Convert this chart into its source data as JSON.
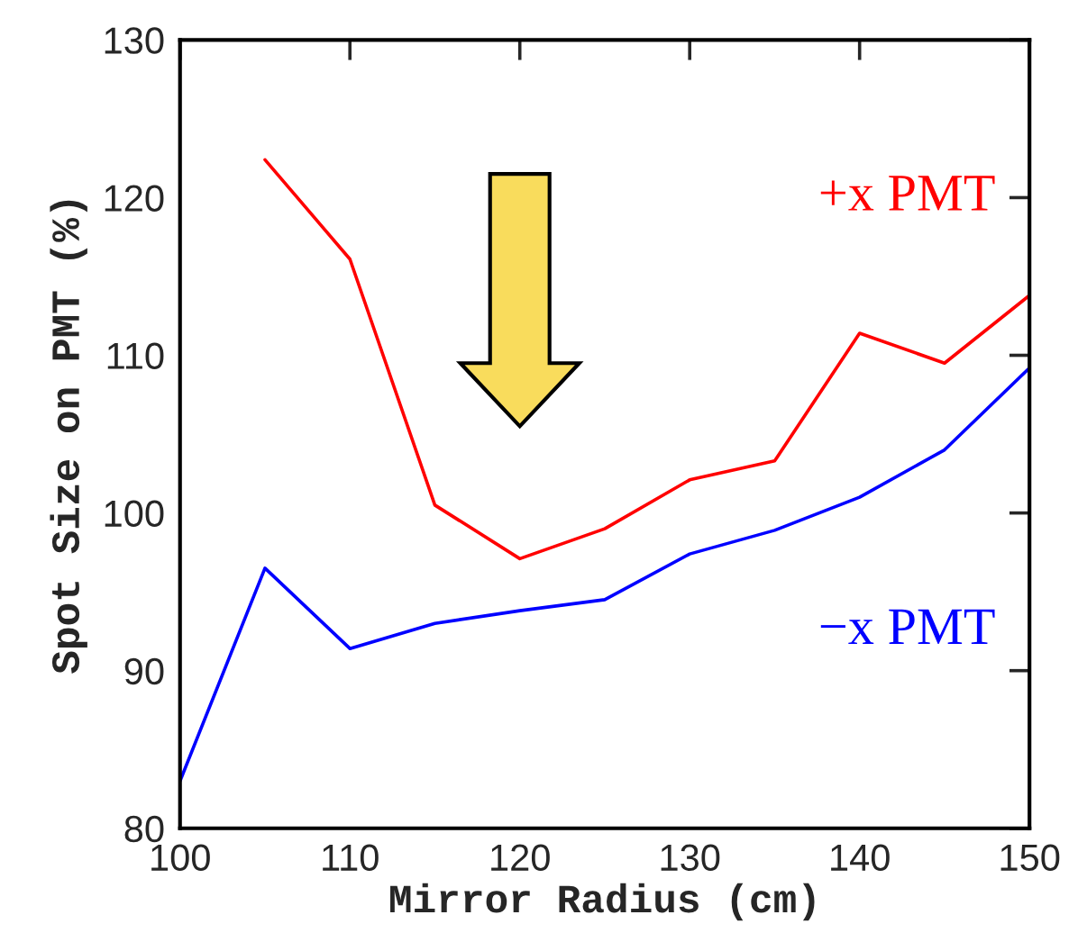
{
  "chart_data": {
    "type": "line",
    "xlabel": "Mirror Radius (cm)",
    "ylabel": "Spot Size on PMT (%)",
    "x": [
      100,
      105,
      110,
      115,
      120,
      125,
      130,
      135,
      140,
      145,
      150
    ],
    "series": [
      {
        "name": "+x PMT",
        "color": "#ff0000",
        "values": [
          null,
          122.4,
          116.1,
          100.5,
          97.1,
          99.0,
          102.1,
          103.3,
          111.4,
          109.5,
          113.8
        ]
      },
      {
        "name": "−x PMT",
        "color": "#0000ff",
        "values": [
          83.0,
          96.5,
          91.4,
          93.0,
          93.8,
          94.5,
          97.4,
          98.9,
          101.0,
          104.0,
          109.2
        ]
      }
    ],
    "xlim": [
      100,
      150
    ],
    "xticks": [
      100,
      110,
      120,
      130,
      140,
      150
    ],
    "ylim": [
      80,
      130
    ],
    "yticks": [
      80,
      90,
      100,
      110,
      120,
      130
    ],
    "grid": false,
    "legend": false,
    "marker": "none",
    "line_style": "solid"
  }
}
